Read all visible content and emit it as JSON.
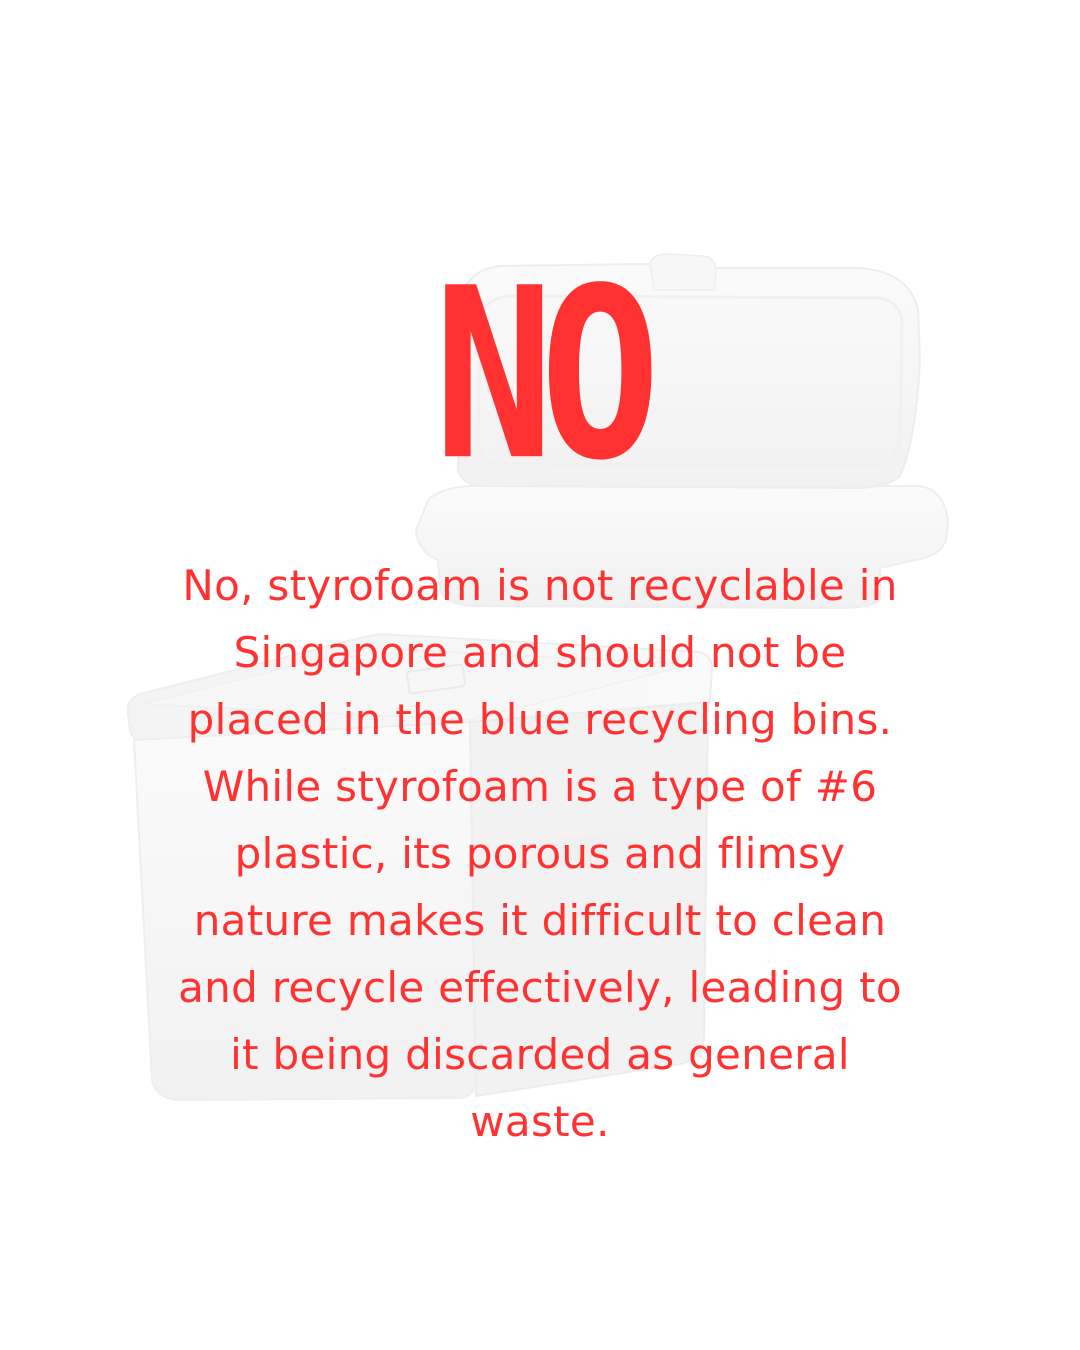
{
  "headline": "NO",
  "body": "No, styrofoam is not recyclable in Singapore and should not be placed in the blue recycling bins. While styrofoam is a type of #6 plastic, its porous and flimsy nature makes it difficult to clean and recycle effectively, leading to it being discarded as general waste.",
  "colors": {
    "text": "#ff3131",
    "background": "#ffffff",
    "foam": "#f6f6f6"
  },
  "illustrations": [
    "styrofoam-clamshell-container",
    "styrofoam-cooler-box"
  ]
}
